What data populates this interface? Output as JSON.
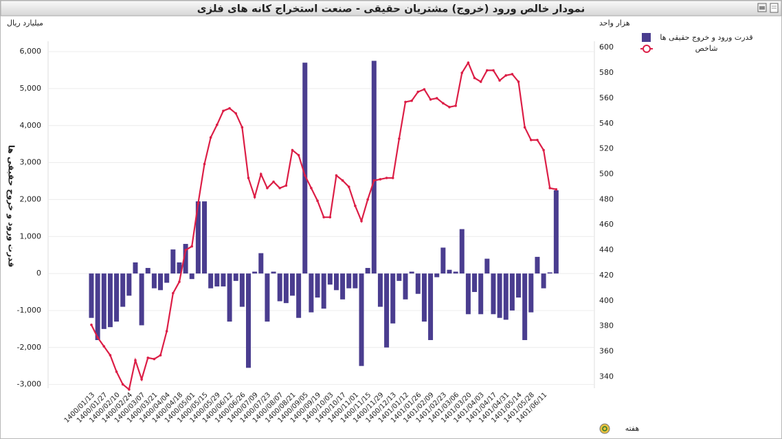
{
  "chart_data": {
    "type": "bar",
    "title": "نمودار خالص ورود (خروج) مشتریان حقیقی - صنعت استخراج کانه های فلزی",
    "y_label": "قدرت ورود و خروج حقیقی ها",
    "y_unit_label": "میلیارد ریال",
    "y2_unit_label": "هزار واحد",
    "x_label": "هفته",
    "categories": [
      "1400/01/13",
      null,
      "1400/01/27",
      null,
      "1400/02/10",
      null,
      "1400/02/24",
      null,
      "1400/03/07",
      null,
      "1400/03/21",
      null,
      "1400/04/04",
      null,
      "1400/04/18",
      null,
      "1400/05/01",
      null,
      "1400/05/15",
      null,
      "1400/05/29",
      null,
      "1400/06/12",
      null,
      "1400/06/26",
      null,
      "1400/07/09",
      null,
      "1400/07/23",
      null,
      "1400/08/07",
      null,
      "1400/08/21",
      null,
      "1400/09/05",
      null,
      "1400/09/19",
      null,
      "1400/10/03",
      null,
      "1400/10/17",
      null,
      "1400/11/01",
      null,
      "1400/11/15",
      null,
      "1400/11/29",
      null,
      "1400/12/13",
      null,
      "1401/01/12",
      null,
      "1401/01/26",
      null,
      "1401/02/09",
      null,
      "1401/02/23",
      null,
      "1401/03/06",
      null,
      "1401/03/20",
      null,
      "1401/04/03",
      null,
      "1401/04/17",
      null,
      "1401/04/31",
      null,
      "1401/05/14",
      null,
      "1401/05/28",
      null,
      "1401/06/11",
      null,
      null
    ],
    "series": [
      {
        "name": "قدرت ورود و خروج حقیقی ها",
        "type": "bar",
        "color": "#4a3d8f",
        "values": [
          -1200,
          -1800,
          -1500,
          -1450,
          -1300,
          -900,
          -600,
          300,
          -1400,
          150,
          -400,
          -450,
          -250,
          650,
          300,
          800,
          -150,
          1950,
          1950,
          -400,
          -350,
          -350,
          -1300,
          -200,
          -900,
          -2550,
          50,
          550,
          -1300,
          50,
          -750,
          -800,
          -600,
          -1200,
          5700,
          -1050,
          -650,
          -950,
          -300,
          -450,
          -700,
          -400,
          -400,
          -2500,
          150,
          5750,
          -900,
          -2000,
          -1350,
          -200,
          -700,
          50,
          -550,
          -1300,
          -1800,
          -100,
          700,
          100,
          50,
          1200,
          -1100,
          -500,
          -1100,
          400,
          -1100,
          -1200,
          -1250,
          -1000,
          -650,
          -1800,
          -1050,
          450,
          -400,
          30,
          2250
        ]
      },
      {
        "name": "شاخص",
        "type": "line",
        "axis": "y2",
        "color": "#dc1e46",
        "values": [
          381,
          371,
          364,
          357,
          344,
          334,
          330,
          353,
          338,
          355,
          354,
          357,
          376,
          406,
          415,
          440,
          443,
          477,
          508,
          529,
          539,
          550,
          552,
          548,
          537,
          497,
          482,
          500,
          489,
          494,
          489,
          491,
          519,
          515,
          499,
          489,
          479,
          466,
          466,
          499,
          495,
          490,
          475,
          463,
          480,
          495,
          496,
          497,
          497,
          528,
          557,
          558,
          565,
          567,
          559,
          560,
          556,
          553,
          554,
          580,
          588,
          576,
          573,
          582,
          582,
          574,
          578,
          579,
          573,
          537,
          527,
          527,
          519,
          489,
          488
        ]
      }
    ],
    "ylim": [
      -3100,
      6280
    ],
    "yticks": [
      {
        "value": -3000,
        "label": "-3,000"
      },
      {
        "value": -2000,
        "label": "-2,000"
      },
      {
        "value": -1000,
        "label": "-1,000"
      },
      0,
      {
        "value": 1000,
        "label": "1,000"
      },
      {
        "value": 2000,
        "label": "2,000"
      },
      {
        "value": 3000,
        "label": "3,000"
      },
      {
        "value": 4000,
        "label": "4,000"
      },
      {
        "value": 5000,
        "label": "5,000"
      },
      {
        "value": 6000,
        "label": "6,000"
      }
    ],
    "y2lim": [
      331,
      605
    ],
    "y2ticks": [
      340,
      360,
      380,
      400,
      420,
      440,
      460,
      480,
      500,
      520,
      540,
      560,
      580,
      600
    ],
    "grid": true
  }
}
